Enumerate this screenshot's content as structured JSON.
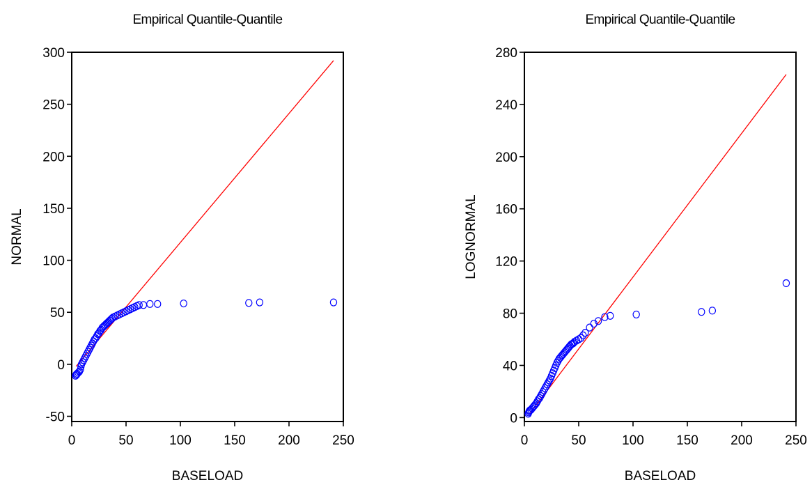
{
  "chart_data": [
    {
      "type": "scatter",
      "title": "Empirical Quantile-Quantile",
      "xlabel": "BASELOAD",
      "ylabel": "NORMAL",
      "xlim": [
        0,
        250
      ],
      "ylim": [
        -55,
        300
      ],
      "xticks": [
        "0",
        "50",
        "100",
        "150",
        "200",
        "250"
      ],
      "xtick_values": [
        0,
        50,
        100,
        150,
        200,
        250
      ],
      "yticks": [
        "-50",
        "0",
        "50",
        "100",
        "150",
        "200",
        "250",
        "300"
      ],
      "ytick_values": [
        -50,
        0,
        50,
        100,
        150,
        200,
        250,
        300
      ],
      "grid": false,
      "reference_line": {
        "color": "#ff0000",
        "x": [
          4,
          241
        ],
        "y": [
          -2,
          292
        ]
      },
      "marker_color": "#0000ff",
      "points": [
        [
          3.5,
          -11
        ],
        [
          4,
          -10
        ],
        [
          4.5,
          -10
        ],
        [
          5,
          -9
        ],
        [
          6,
          -8
        ],
        [
          7,
          -7
        ],
        [
          8,
          -5
        ],
        [
          8.5,
          -2
        ],
        [
          9,
          0
        ],
        [
          10,
          2
        ],
        [
          11,
          4
        ],
        [
          12,
          6
        ],
        [
          13,
          8
        ],
        [
          14,
          10
        ],
        [
          15,
          12
        ],
        [
          16,
          14
        ],
        [
          17,
          16
        ],
        [
          18,
          18
        ],
        [
          19,
          20
        ],
        [
          20,
          22
        ],
        [
          21,
          24
        ],
        [
          22,
          25
        ],
        [
          23,
          27
        ],
        [
          24,
          29
        ],
        [
          25,
          30
        ],
        [
          26,
          32
        ],
        [
          27,
          33
        ],
        [
          28,
          35
        ],
        [
          29,
          36
        ],
        [
          30,
          37
        ],
        [
          31,
          38
        ],
        [
          32,
          39
        ],
        [
          33,
          40
        ],
        [
          34,
          41
        ],
        [
          35,
          42
        ],
        [
          36,
          43
        ],
        [
          37,
          44
        ],
        [
          38,
          45
        ],
        [
          40,
          46
        ],
        [
          42,
          47
        ],
        [
          44,
          48
        ],
        [
          46,
          49
        ],
        [
          48,
          50
        ],
        [
          50,
          51
        ],
        [
          52,
          52
        ],
        [
          54,
          53
        ],
        [
          56,
          54
        ],
        [
          58,
          55
        ],
        [
          60,
          56
        ],
        [
          62,
          57
        ],
        [
          66,
          57
        ],
        [
          72,
          58
        ],
        [
          79,
          58
        ],
        [
          103,
          58.5
        ],
        [
          163,
          59
        ],
        [
          173,
          59.5
        ],
        [
          241,
          59.5
        ]
      ]
    },
    {
      "type": "scatter",
      "title": "Empirical Quantile-Quantile",
      "xlabel": "BASELOAD",
      "ylabel": "LOGNORMAL",
      "xlim": [
        0,
        250
      ],
      "ylim": [
        -3,
        280
      ],
      "xticks": [
        "0",
        "50",
        "100",
        "150",
        "200",
        "250"
      ],
      "xtick_values": [
        0,
        50,
        100,
        150,
        200,
        250
      ],
      "yticks": [
        "0",
        "40",
        "80",
        "120",
        "160",
        "200",
        "240",
        "280"
      ],
      "ytick_values": [
        0,
        40,
        80,
        120,
        160,
        200,
        240,
        280
      ],
      "grid": false,
      "reference_line": {
        "color": "#ff0000",
        "x": [
          4,
          241
        ],
        "y": [
          2,
          263
        ]
      },
      "marker_color": "#0000ff",
      "points": [
        [
          3.5,
          3
        ],
        [
          4,
          4
        ],
        [
          4.5,
          5
        ],
        [
          5,
          5.5
        ],
        [
          6,
          6
        ],
        [
          7,
          7
        ],
        [
          8,
          8
        ],
        [
          9,
          9
        ],
        [
          10,
          10
        ],
        [
          11,
          11
        ],
        [
          12,
          12.5
        ],
        [
          13,
          14
        ],
        [
          14,
          15
        ],
        [
          15,
          16.5
        ],
        [
          16,
          18
        ],
        [
          17,
          19.5
        ],
        [
          18,
          21
        ],
        [
          19,
          22.5
        ],
        [
          20,
          24
        ],
        [
          21,
          25.5
        ],
        [
          22,
          27
        ],
        [
          23,
          28.5
        ],
        [
          24,
          30
        ],
        [
          25,
          32
        ],
        [
          26,
          34
        ],
        [
          27,
          36
        ],
        [
          28,
          38
        ],
        [
          29,
          40
        ],
        [
          30,
          42
        ],
        [
          31,
          43.5
        ],
        [
          32,
          45
        ],
        [
          33,
          46
        ],
        [
          34,
          47
        ],
        [
          35,
          48
        ],
        [
          36,
          49
        ],
        [
          37,
          50
        ],
        [
          38,
          51
        ],
        [
          39,
          52
        ],
        [
          40,
          53
        ],
        [
          41,
          54
        ],
        [
          42,
          55
        ],
        [
          43,
          56
        ],
        [
          44,
          56.5
        ],
        [
          45,
          57
        ],
        [
          46,
          58
        ],
        [
          48,
          59
        ],
        [
          50,
          60
        ],
        [
          52,
          61
        ],
        [
          54,
          63
        ],
        [
          56,
          65
        ],
        [
          60,
          69
        ],
        [
          64,
          72
        ],
        [
          68,
          74
        ],
        [
          74,
          77
        ],
        [
          79,
          78
        ],
        [
          103,
          79
        ],
        [
          163,
          81
        ],
        [
          173,
          82
        ],
        [
          241,
          103
        ]
      ]
    }
  ]
}
